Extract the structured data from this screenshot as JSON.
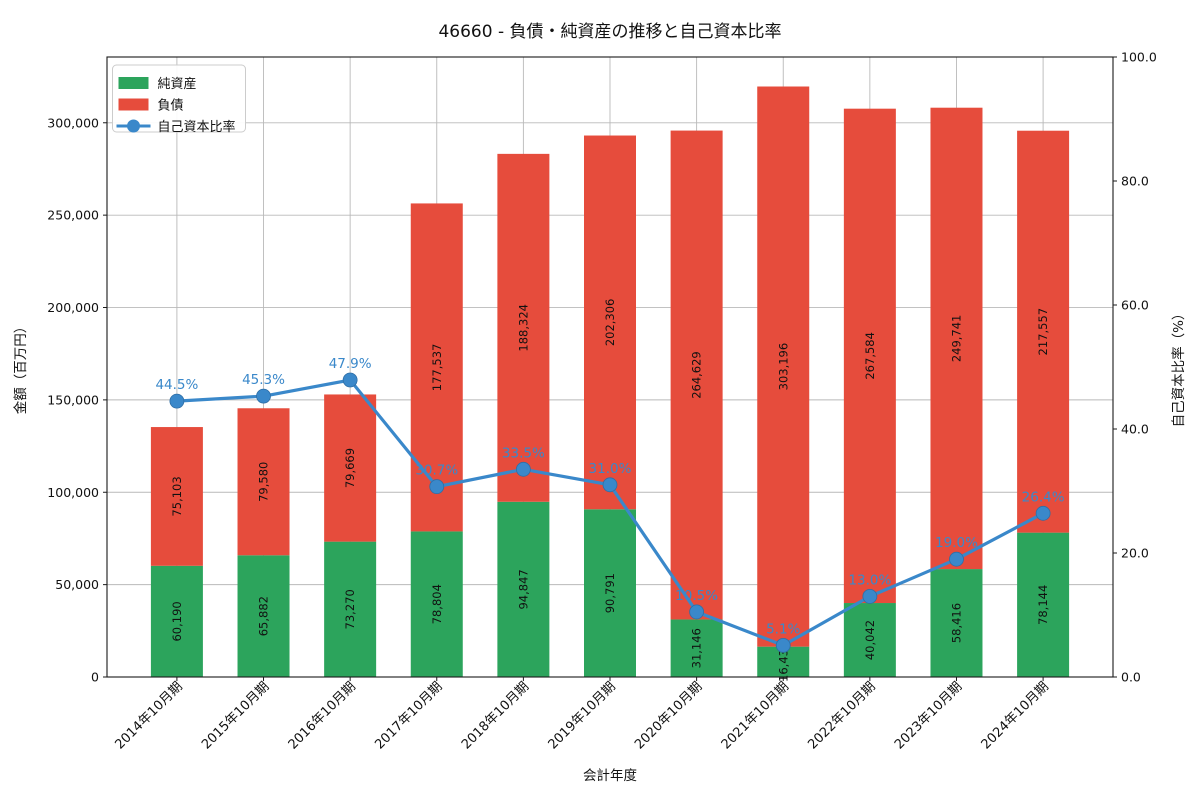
{
  "chart_data": {
    "type": "bar",
    "subtype": "stacked-bar-with-line-overlay",
    "title": "46660 - 負債・純資産の推移と自己資本比率",
    "xlabel": "会計年度",
    "ylabel_left": "金額（百万円）",
    "ylabel_right": "自己資本比率（%）",
    "categories": [
      "2014年10月期",
      "2015年10月期",
      "2016年10月期",
      "2017年10月期",
      "2018年10月期",
      "2019年10月期",
      "2020年10月期",
      "2021年10月期",
      "2022年10月期",
      "2023年10月期",
      "2024年10月期"
    ],
    "series": [
      {
        "name": "純資産",
        "type": "bar",
        "stack": true,
        "color": "#2ca45c",
        "values": [
          60190,
          65882,
          73270,
          78804,
          94847,
          90791,
          31146,
          16433,
          40042,
          58416,
          78144
        ],
        "labels": [
          "60,190",
          "65,882",
          "73,270",
          "78,804",
          "94,847",
          "90,791",
          "31,146",
          "16,433",
          "40,042",
          "58,416",
          "78,144"
        ]
      },
      {
        "name": "負債",
        "type": "bar",
        "stack": true,
        "color": "#e64c3c",
        "values": [
          75103,
          79580,
          79669,
          177537,
          188324,
          202306,
          264629,
          303196,
          267584,
          249741,
          217557
        ],
        "labels": [
          "75,103",
          "79,580",
          "79,669",
          "177,537",
          "188,324",
          "202,306",
          "264,629",
          "303,196",
          "267,584",
          "249,741",
          "217,557"
        ]
      },
      {
        "name": "自己資本比率",
        "type": "line",
        "axis": "right",
        "color": "#3a88ca",
        "values": [
          44.5,
          45.3,
          47.9,
          30.7,
          33.5,
          31.0,
          10.5,
          5.1,
          13.0,
          19.0,
          26.4
        ],
        "labels": [
          "44.5%",
          "45.3%",
          "47.9%",
          "30.7%",
          "33.5%",
          "31.0%",
          "10.5%",
          "5.1%",
          "13.0%",
          "19.0%",
          "26.4%"
        ]
      }
    ],
    "y_left": {
      "lim": [
        0,
        335600
      ],
      "ticks": [
        0,
        50000,
        100000,
        150000,
        200000,
        250000,
        300000
      ],
      "tick_labels": [
        "0",
        "50,000",
        "100,000",
        "150,000",
        "200,000",
        "250,000",
        "300,000"
      ]
    },
    "y_right": {
      "lim": [
        0,
        100
      ],
      "ticks": [
        0,
        20,
        40,
        60,
        80,
        100
      ],
      "tick_labels": [
        "0.0",
        "20.0",
        "40.0",
        "60.0",
        "80.0",
        "100.0"
      ]
    },
    "grid": true,
    "grid_color": "#b9b9b9",
    "spine_color": "#1a1a1a",
    "legend": {
      "position": "upper left",
      "items": [
        "純資産",
        "負債",
        "自己資本比率"
      ]
    }
  }
}
